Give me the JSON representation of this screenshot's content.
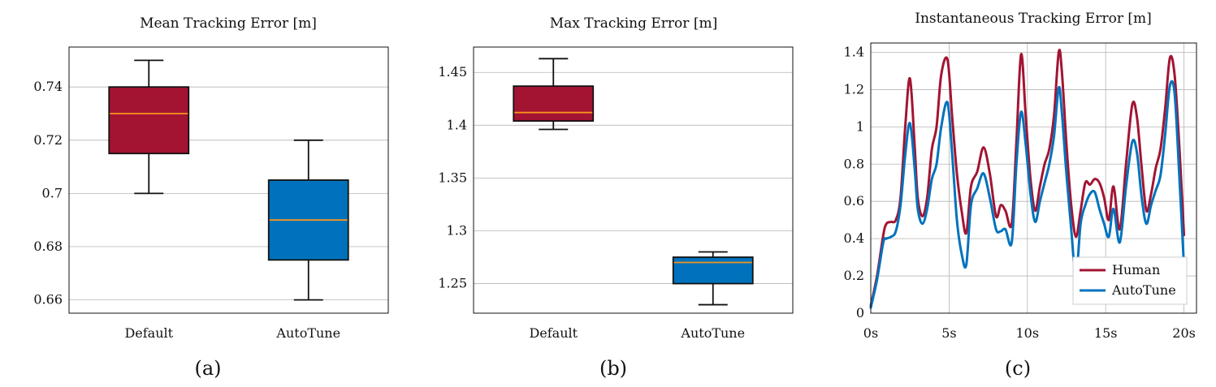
{
  "chart_data": [
    {
      "type": "box",
      "caption": "(a)",
      "title": "Mean Tracking Error [m]",
      "categories": [
        "Default",
        "AutoTune"
      ],
      "ylim": [
        0.655,
        0.755
      ],
      "yticks": [
        0.66,
        0.68,
        0.7,
        0.72,
        0.74
      ],
      "ytick_labels": [
        "0.66",
        "0.68",
        "0.7",
        "0.72",
        "0.74"
      ],
      "grid": "horizontal",
      "boxes": [
        {
          "category": "Default",
          "whisker_low": 0.7,
          "q1": 0.715,
          "median": 0.73,
          "q3": 0.74,
          "whisker_high": 0.75,
          "color": "#a31432"
        },
        {
          "category": "AutoTune",
          "whisker_low": 0.66,
          "q1": 0.675,
          "median": 0.69,
          "q3": 0.705,
          "whisker_high": 0.72,
          "color": "#0072bd"
        }
      ]
    },
    {
      "type": "box",
      "caption": "(b)",
      "title": "Max Tracking Error [m]",
      "categories": [
        "Default",
        "AutoTune"
      ],
      "ylim": [
        1.222,
        1.474
      ],
      "yticks": [
        1.25,
        1.3,
        1.35,
        1.4,
        1.45
      ],
      "ytick_labels": [
        "1.25",
        "1.3",
        "1.35",
        "1.4",
        "1.45"
      ],
      "grid": "horizontal",
      "boxes": [
        {
          "category": "Default",
          "whisker_low": 1.396,
          "q1": 1.404,
          "median": 1.412,
          "q3": 1.437,
          "whisker_high": 1.463,
          "color": "#a31432"
        },
        {
          "category": "AutoTune",
          "whisker_low": 1.23,
          "q1": 1.25,
          "median": 1.27,
          "q3": 1.275,
          "whisker_high": 1.28,
          "color": "#0072bd"
        }
      ]
    },
    {
      "type": "line",
      "caption": "(c)",
      "title": "Instantaneous Tracking Error [m]",
      "xlim": [
        0,
        20.8
      ],
      "ylim": [
        0,
        1.45
      ],
      "xticks": [
        0,
        5,
        10,
        15,
        20
      ],
      "xtick_labels": [
        "0s",
        "5s",
        "10s",
        "15s",
        "20s"
      ],
      "yticks": [
        0,
        0.2,
        0.4,
        0.6,
        0.8,
        1,
        1.2,
        1.4
      ],
      "ytick_labels": [
        "0",
        "0.2",
        "0.4",
        "0.6",
        "0.8",
        "1",
        "1.2",
        "1.4"
      ],
      "grid": "both",
      "legend": "lower-right",
      "series": [
        {
          "name": "Human",
          "color": "#a31432",
          "x": [
            0,
            0.4,
            0.8,
            1.0,
            1.3,
            1.6,
            1.9,
            2.2,
            2.5,
            2.8,
            3.0,
            3.3,
            3.6,
            3.9,
            4.2,
            4.5,
            4.9,
            5.2,
            5.5,
            5.8,
            6.1,
            6.4,
            6.8,
            7.2,
            7.6,
            8.0,
            8.3,
            8.6,
            9.0,
            9.3,
            9.6,
            9.9,
            10.2,
            10.5,
            10.8,
            11.1,
            11.4,
            11.7,
            12.0,
            12.2,
            12.5,
            12.8,
            13.1,
            13.4,
            13.7,
            14.0,
            14.3,
            14.6,
            14.9,
            15.2,
            15.5,
            15.9,
            16.3,
            16.7,
            17.0,
            17.3,
            17.6,
            17.9,
            18.2,
            18.5,
            18.8,
            19.1,
            19.4,
            19.7,
            20.0
          ],
          "y": [
            0.04,
            0.2,
            0.42,
            0.48,
            0.49,
            0.5,
            0.62,
            1.0,
            1.26,
            0.9,
            0.62,
            0.52,
            0.62,
            0.88,
            1.0,
            1.28,
            1.36,
            1.05,
            0.75,
            0.55,
            0.43,
            0.68,
            0.76,
            0.89,
            0.75,
            0.52,
            0.58,
            0.55,
            0.48,
            0.92,
            1.39,
            1.05,
            0.72,
            0.55,
            0.68,
            0.8,
            0.88,
            1.06,
            1.4,
            1.3,
            0.9,
            0.58,
            0.41,
            0.55,
            0.7,
            0.69,
            0.72,
            0.7,
            0.62,
            0.5,
            0.68,
            0.45,
            0.8,
            1.12,
            1.05,
            0.78,
            0.55,
            0.64,
            0.78,
            0.88,
            1.1,
            1.37,
            1.28,
            0.9,
            0.42
          ]
        },
        {
          "name": "AutoTune",
          "color": "#0072bd",
          "x": [
            0,
            0.4,
            0.8,
            1.0,
            1.3,
            1.6,
            1.9,
            2.2,
            2.5,
            2.8,
            3.0,
            3.3,
            3.6,
            3.9,
            4.2,
            4.5,
            4.9,
            5.2,
            5.5,
            5.8,
            6.1,
            6.4,
            6.8,
            7.2,
            7.6,
            8.0,
            8.3,
            8.6,
            9.0,
            9.3,
            9.6,
            9.9,
            10.2,
            10.5,
            10.8,
            11.1,
            11.4,
            11.7,
            12.0,
            12.2,
            12.5,
            12.8,
            13.1,
            13.4,
            13.7,
            14.0,
            14.3,
            14.6,
            14.9,
            15.2,
            15.5,
            15.9,
            16.3,
            16.7,
            17.0,
            17.3,
            17.6,
            17.9,
            18.2,
            18.5,
            18.8,
            19.1,
            19.4,
            19.7,
            20.0
          ],
          "y": [
            0.03,
            0.18,
            0.38,
            0.4,
            0.41,
            0.44,
            0.58,
            0.85,
            1.02,
            0.78,
            0.56,
            0.48,
            0.56,
            0.72,
            0.8,
            1.0,
            1.13,
            0.85,
            0.5,
            0.32,
            0.26,
            0.58,
            0.67,
            0.75,
            0.62,
            0.45,
            0.44,
            0.45,
            0.38,
            0.8,
            1.08,
            0.9,
            0.64,
            0.49,
            0.6,
            0.7,
            0.8,
            0.95,
            1.21,
            1.08,
            0.74,
            0.45,
            0.2,
            0.48,
            0.58,
            0.64,
            0.65,
            0.56,
            0.48,
            0.41,
            0.56,
            0.38,
            0.68,
            0.92,
            0.86,
            0.62,
            0.48,
            0.58,
            0.66,
            0.74,
            0.96,
            1.22,
            1.18,
            0.74,
            0.25
          ]
        }
      ]
    }
  ]
}
